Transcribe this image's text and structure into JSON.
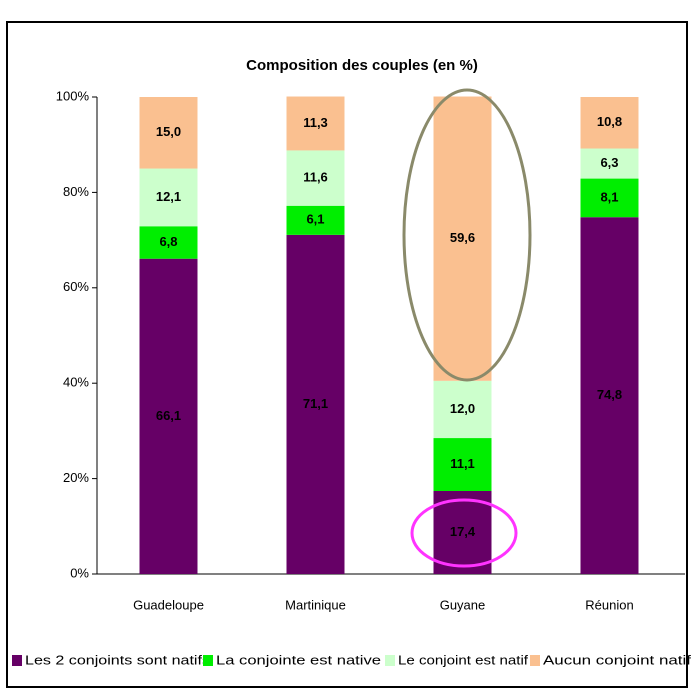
{
  "chart_data": {
    "type": "stacked_bar",
    "title": "Composition des couples (en %)",
    "categories": [
      "Guadeloupe",
      "Martinique",
      "Guyane",
      "Réunion"
    ],
    "series": [
      {
        "name": "Les 2 conjoints sont natifs",
        "color": "#660066",
        "values": [
          66.1,
          71.1,
          17.4,
          74.8
        ],
        "value_labels": [
          "66,1",
          "71,1",
          "17,4",
          "74,8"
        ]
      },
      {
        "name": "La conjointe est native",
        "color": "#00ee00",
        "values": [
          6.8,
          6.1,
          11.1,
          8.1
        ],
        "value_labels": [
          "6,8",
          "6,1",
          "11,1",
          "8,1"
        ]
      },
      {
        "name": "Le conjoint est natif",
        "color": "#ccffcc",
        "values": [
          12.1,
          11.6,
          12.0,
          6.3
        ],
        "value_labels": [
          "12,1",
          "11,6",
          "12,0",
          "6,3"
        ]
      },
      {
        "name": "Aucun conjoint natif",
        "color": "#fac090",
        "values": [
          15.0,
          11.3,
          59.6,
          10.8
        ],
        "value_labels": [
          "15,0",
          "11,3",
          "59,6",
          "10,8"
        ]
      }
    ],
    "ylim": [
      0,
      100
    ],
    "yticks": [
      {
        "value": 0,
        "label": "0%"
      },
      {
        "value": 20,
        "label": "20%"
      },
      {
        "value": 40,
        "label": "40%"
      },
      {
        "value": 60,
        "label": "60%"
      },
      {
        "value": 80,
        "label": "80%"
      },
      {
        "value": 100,
        "label": "100%"
      }
    ],
    "legend": "bottom"
  }
}
